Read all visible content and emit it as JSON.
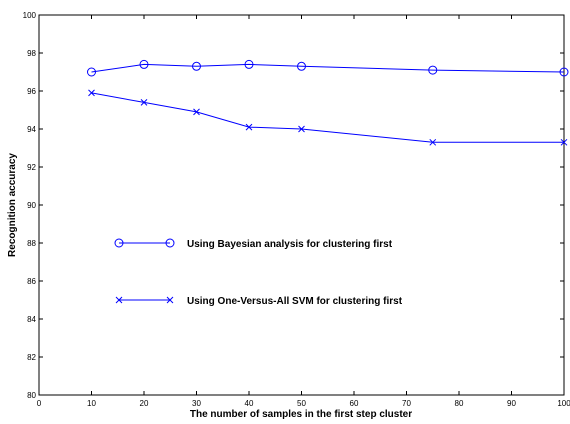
{
  "chart_data": {
    "type": "line",
    "title": "",
    "xlabel": "The number of samples in the first step cluster",
    "ylabel": "Recognition accuracy",
    "xlim": [
      0,
      100
    ],
    "ylim": [
      80,
      100
    ],
    "xticks": [
      "0",
      "10",
      "20",
      "30",
      "40",
      "50",
      "60",
      "70",
      "80",
      "90",
      "100"
    ],
    "yticks": [
      "80",
      "82",
      "84",
      "86",
      "88",
      "90",
      "92",
      "94",
      "96",
      "98",
      "100"
    ],
    "grid": false,
    "legend_position": "center-left",
    "line_color": "#0000ff",
    "series": [
      {
        "name": "Using Bayesian analysis for clustering first",
        "marker": "circle",
        "x": [
          10,
          20,
          30,
          40,
          50,
          75,
          100
        ],
        "y": [
          97.0,
          97.4,
          97.3,
          97.4,
          97.3,
          97.1,
          97.0
        ]
      },
      {
        "name": "Using One-Versus-All SVM for clustering first",
        "marker": "x",
        "x": [
          10,
          20,
          30,
          40,
          50,
          75,
          100
        ],
        "y": [
          95.9,
          95.4,
          94.9,
          94.1,
          94.0,
          93.3,
          93.3
        ]
      }
    ]
  }
}
